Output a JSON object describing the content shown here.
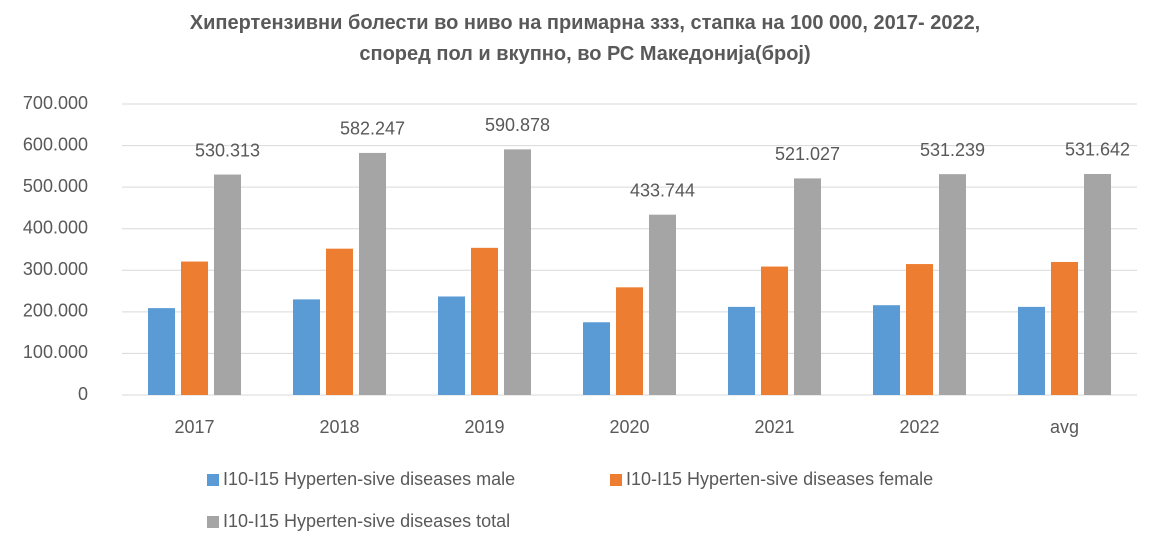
{
  "chart_data": {
    "type": "bar",
    "title": "Хипертензивни  болести во ниво на примарна ззз, стапка на 100 000, 2017- 2022,\nспоред пол и вкупно,  во РС Македонија(број)",
    "categories": [
      "2017",
      "2018",
      "2019",
      "2020",
      "2021",
      "2022",
      "avg"
    ],
    "series": [
      {
        "name": "I10-I15 Hyperten-sive diseases male",
        "color": "#5b9bd5",
        "values": [
          209000,
          230000,
          237000,
          175000,
          212000,
          216000,
          212000
        ]
      },
      {
        "name": "I10-I15 Hyperten-sive diseases female",
        "color": "#ed7d31",
        "values": [
          321000,
          352000,
          354000,
          259000,
          309000,
          315000,
          320000
        ]
      },
      {
        "name": "I10-I15 Hyperten-sive diseases total",
        "color": "#a5a5a5",
        "values": [
          530313,
          582247,
          590878,
          433744,
          521027,
          531239,
          531642
        ],
        "value_labels": [
          "530.313",
          "582.247",
          "590.878",
          "433.744",
          "521.027",
          "531.239",
          "531.642"
        ]
      }
    ],
    "ylim": [
      0,
      700000
    ],
    "yticks": [
      0,
      {
        "value": 100000,
        "label": "100.000"
      },
      {
        "value": 200000,
        "label": "200.000"
      },
      {
        "value": 300000,
        "label": "300.000"
      },
      {
        "value": 400000,
        "label": "400.000"
      },
      {
        "value": 500000,
        "label": "500.000"
      },
      {
        "value": 600000,
        "label": "600.000"
      },
      {
        "value": 700000,
        "label": "700.000"
      }
    ],
    "grid": true,
    "legend": "bottom"
  }
}
